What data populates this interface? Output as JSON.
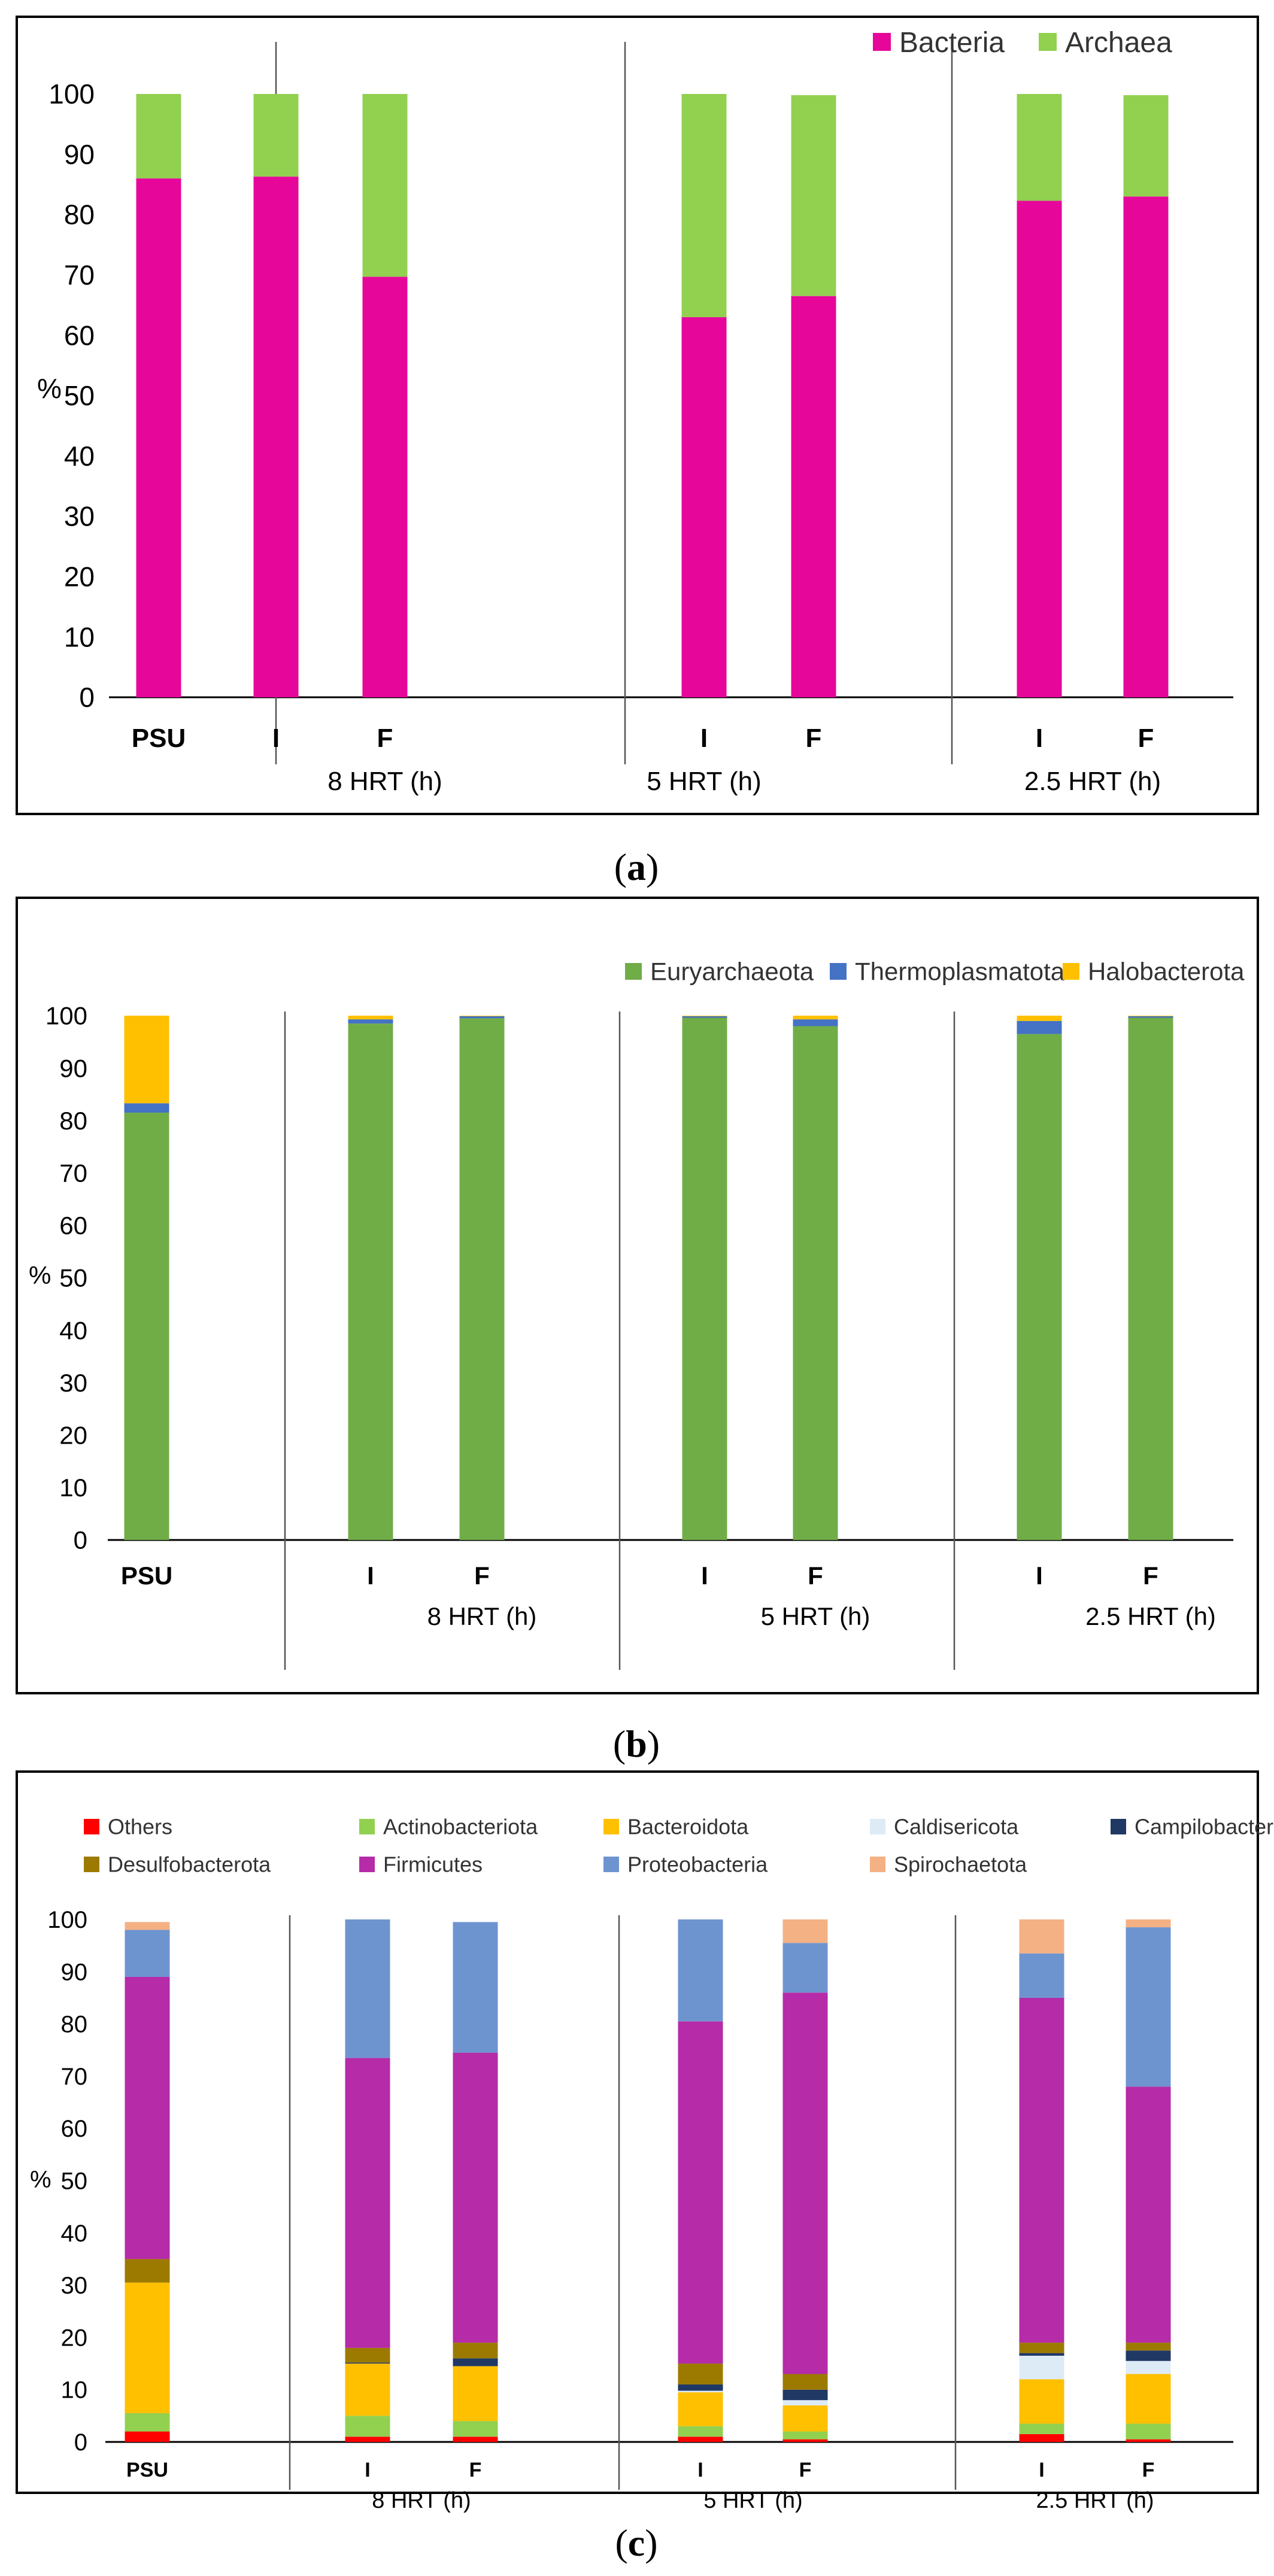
{
  "figure": {
    "panels": [
      {
        "caption_open": "(",
        "caption_letter": "a",
        "caption_close": ")"
      },
      {
        "caption_open": "(",
        "caption_letter": "b",
        "caption_close": ")"
      },
      {
        "caption_open": "(",
        "caption_letter": "c",
        "caption_close": ")"
      }
    ]
  },
  "chart_data": [
    {
      "id": "a",
      "type": "bar",
      "stacked": true,
      "title": "",
      "xlabel": "",
      "ylabel": "%",
      "ylim": [
        0,
        100
      ],
      "yticks": [
        0,
        10,
        20,
        30,
        40,
        50,
        60,
        70,
        80,
        90,
        100
      ],
      "categories": [
        "PSU",
        "I",
        "F",
        "I",
        "F",
        "I",
        "F"
      ],
      "groups": [
        {
          "label": "",
          "members": [
            "PSU"
          ]
        },
        {
          "label": "8 HRT (h)",
          "members": [
            "I",
            "F"
          ]
        },
        {
          "label": "5 HRT (h)",
          "members": [
            "I",
            "F"
          ]
        },
        {
          "label": "2.5 HRT (h)",
          "members": [
            "I",
            "F"
          ]
        }
      ],
      "legend_position": "top-right",
      "series": [
        {
          "name": "Bacteria",
          "color": "#E6079A",
          "values": [
            86,
            86.3,
            69.7,
            63,
            66.5,
            82.3,
            83
          ]
        },
        {
          "name": "Archaea",
          "color": "#92D050",
          "values": [
            14,
            13.7,
            30.3,
            37,
            33.3,
            17.7,
            16.8
          ]
        }
      ]
    },
    {
      "id": "b",
      "type": "bar",
      "stacked": true,
      "title": "",
      "xlabel": "",
      "ylabel": "%",
      "ylim": [
        0,
        100
      ],
      "yticks": [
        0,
        10,
        20,
        30,
        40,
        50,
        60,
        70,
        80,
        90,
        100
      ],
      "categories": [
        "PSU",
        "I",
        "F",
        "I",
        "F",
        "I",
        "F"
      ],
      "groups": [
        {
          "label": "",
          "members": [
            "PSU"
          ]
        },
        {
          "label": "8 HRT (h)",
          "members": [
            "I",
            "F"
          ]
        },
        {
          "label": "5 HRT (h)",
          "members": [
            "I",
            "F"
          ]
        },
        {
          "label": "2.5 HRT (h)",
          "members": [
            "I",
            "F"
          ]
        }
      ],
      "legend_position": "top-right",
      "series": [
        {
          "name": "Euryarchaeota",
          "color": "#70AD47",
          "values": [
            81.5,
            98.5,
            99.5,
            99.6,
            98,
            96.5,
            99.6
          ]
        },
        {
          "name": "Thermoplasmatota",
          "color": "#4472C4",
          "values": [
            1.8,
            0.8,
            0.4,
            0.3,
            1.3,
            2.5,
            0.3
          ]
        },
        {
          "name": "Halobacterota",
          "color": "#FFC000",
          "values": [
            16.7,
            0.7,
            0.1,
            0.1,
            0.7,
            1.0,
            0.1
          ]
        }
      ]
    },
    {
      "id": "c",
      "type": "bar",
      "stacked": true,
      "title": "",
      "xlabel": "",
      "ylabel": "%",
      "ylim": [
        0,
        100
      ],
      "yticks": [
        0,
        10,
        20,
        30,
        40,
        50,
        60,
        70,
        80,
        90,
        100
      ],
      "categories": [
        "PSU",
        "I",
        "F",
        "I",
        "F",
        "I",
        "F"
      ],
      "groups": [
        {
          "label": "",
          "members": [
            "PSU"
          ]
        },
        {
          "label": "8 HRT (h)",
          "members": [
            "I",
            "F"
          ]
        },
        {
          "label": "5 HRT (h)",
          "members": [
            "I",
            "F"
          ]
        },
        {
          "label": "2.5 HRT (h)",
          "members": [
            "I",
            "F"
          ]
        }
      ],
      "legend_position": "top",
      "series": [
        {
          "name": "Others",
          "color": "#FF0000",
          "values": [
            2.0,
            1.0,
            1.0,
            1.0,
            0.5,
            1.5,
            0.5
          ]
        },
        {
          "name": "Actinobacteriota",
          "color": "#92D050",
          "values": [
            3.5,
            4.0,
            3.0,
            2.0,
            1.5,
            2.0,
            3.0
          ]
        },
        {
          "name": "Bacteroidota",
          "color": "#FFC000",
          "values": [
            25.0,
            10.0,
            10.5,
            6.5,
            5.0,
            8.5,
            9.5
          ]
        },
        {
          "name": "Caldisericota",
          "color": "#DDEBF7",
          "values": [
            0,
            0,
            0,
            0.3,
            1.0,
            4.5,
            2.5
          ]
        },
        {
          "name": "Campilobacterota",
          "color": "#203864",
          "values": [
            0,
            0.2,
            1.5,
            1.2,
            2.0,
            0.5,
            2.0
          ]
        },
        {
          "name": "Desulfobacterota",
          "color": "#9C7A00",
          "values": [
            4.5,
            2.8,
            3.0,
            4.0,
            3.0,
            2.0,
            1.5
          ]
        },
        {
          "name": "Firmicutes",
          "color": "#B52BA8",
          "values": [
            54.0,
            55.5,
            55.5,
            65.5,
            73.0,
            66.0,
            49.0
          ]
        },
        {
          "name": "Proteobacteria",
          "color": "#6E94D0",
          "values": [
            9.0,
            26.5,
            25.0,
            19.5,
            9.5,
            8.5,
            30.5
          ]
        },
        {
          "name": "Spirochaetota",
          "color": "#F4B183",
          "values": [
            1.5,
            0,
            0,
            0,
            4.5,
            6.5,
            1.5
          ]
        }
      ]
    }
  ]
}
